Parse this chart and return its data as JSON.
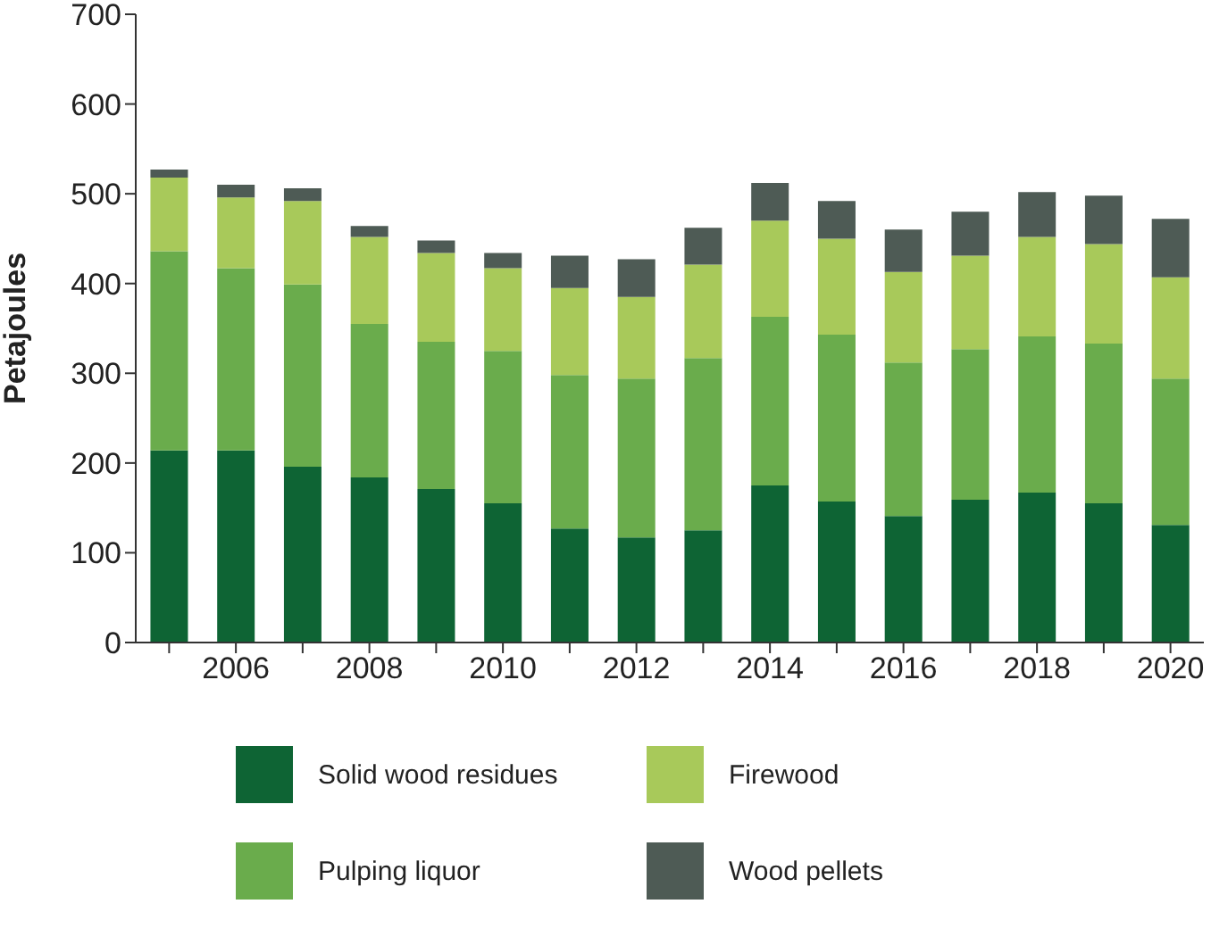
{
  "chart_data": {
    "type": "bar",
    "stacked": true,
    "ylabel": "Petajoules",
    "categories": [
      null,
      "2006",
      null,
      "2008",
      null,
      "2010",
      null,
      "2012",
      null,
      "2014",
      null,
      "2016",
      null,
      "2018",
      null,
      "2020"
    ],
    "ylim": [
      0,
      700
    ],
    "yticks": [
      0,
      100,
      200,
      300,
      400,
      500,
      600,
      700
    ],
    "legend": "bottom",
    "series": [
      {
        "name": "Solid wood residues",
        "color": "#0e6434",
        "values": [
          214,
          214,
          196,
          184,
          171,
          155,
          127,
          117,
          125,
          175,
          157,
          141,
          159,
          167,
          155,
          131
        ]
      },
      {
        "name": "Pulping liquor",
        "color": "#6aac4c",
        "values": [
          222,
          203,
          203,
          171,
          164,
          170,
          171,
          177,
          192,
          188,
          186,
          171,
          168,
          174,
          178,
          163
        ]
      },
      {
        "name": "Firewood",
        "color": "#a8c95a",
        "values": [
          82,
          79,
          93,
          97,
          99,
          92,
          97,
          91,
          104,
          107,
          107,
          101,
          104,
          111,
          111,
          113
        ]
      },
      {
        "name": "Wood pellets",
        "color": "#4e5b55",
        "values": [
          9,
          14,
          14,
          12,
          14,
          17,
          36,
          42,
          41,
          42,
          42,
          47,
          49,
          50,
          54,
          65
        ]
      }
    ]
  }
}
